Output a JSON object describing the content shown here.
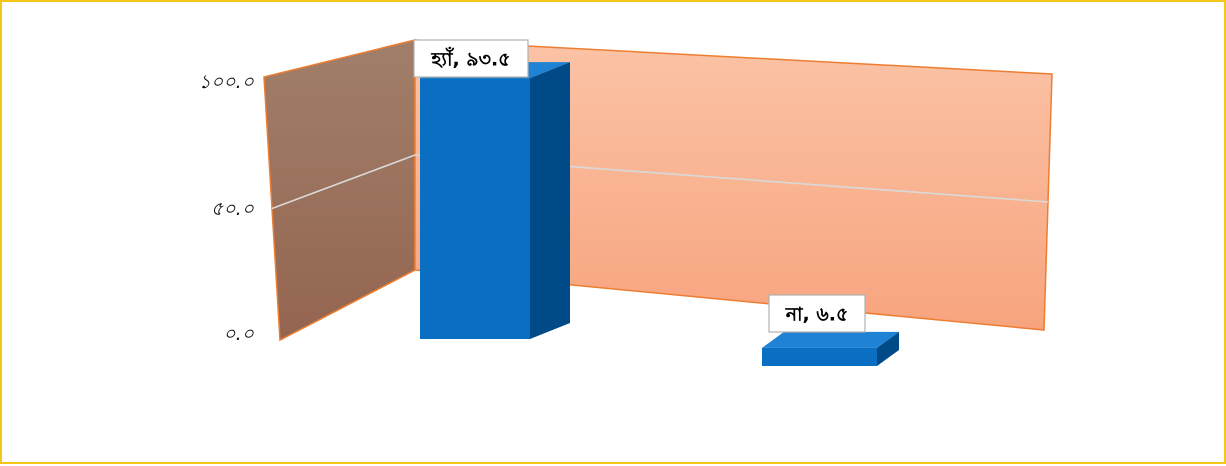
{
  "chart_data": {
    "type": "bar",
    "categories": [
      "হ্যাঁ",
      "না"
    ],
    "values": [
      93.5,
      6.5
    ],
    "data_labels": [
      "হ্যাঁ, ৯৩.৫",
      "না, ৬.৫"
    ],
    "ylim": [
      0,
      100
    ],
    "ytick_labels": [
      "০.০",
      "৫০.০",
      "১০০.০"
    ],
    "ytick_values": [
      0,
      50,
      100
    ],
    "grid": true,
    "legend": "none",
    "style": "3d",
    "colors": {
      "bar_front": "#0a6fc2",
      "bar_side": "#004a87",
      "bar_top": "#1f82d4",
      "back_wall": "#f9ab88",
      "side_wall": "#9b6e58",
      "wall_edge": "#ed7d31",
      "gridline": "#d9d9d9",
      "frame_border": "#f5c518"
    }
  }
}
